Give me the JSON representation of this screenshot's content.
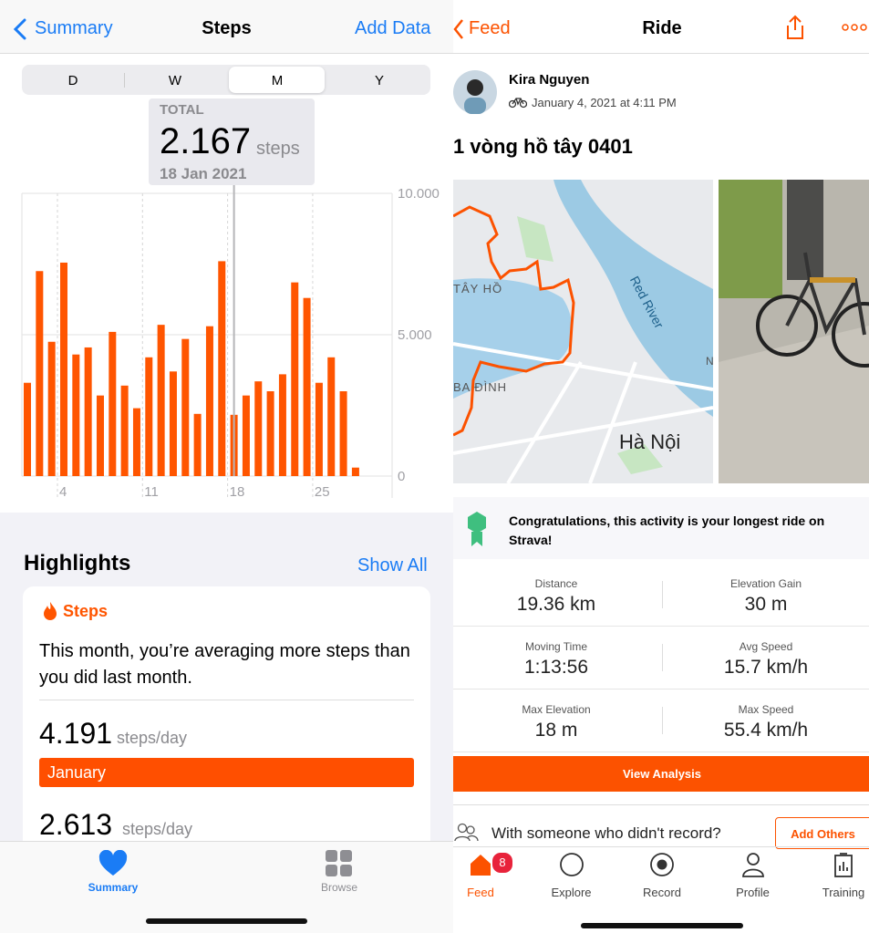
{
  "health": {
    "nav": {
      "back": "Summary",
      "title": "Steps",
      "action": "Add Data"
    },
    "segments": [
      "D",
      "W",
      "M",
      "Y"
    ],
    "tooltip": {
      "label": "TOTAL",
      "value": "2.167",
      "unit": "steps",
      "date": "18 Jan 2021"
    },
    "highlights": {
      "title": "Highlights",
      "show_all": "Show All",
      "card": {
        "category": "Steps",
        "text": "This month, you’re averaging more steps than you did last month.",
        "rows": [
          {
            "value": "4.191",
            "unit": "steps/day",
            "label": "January"
          },
          {
            "value": "2.613",
            "unit": "steps/day"
          }
        ]
      }
    },
    "tabs": [
      "Summary",
      "Browse"
    ]
  },
  "chart_data": {
    "type": "bar",
    "categories": [
      null,
      null,
      null,
      "4",
      null,
      null,
      null,
      null,
      null,
      null,
      "11",
      null,
      null,
      null,
      null,
      null,
      null,
      "18",
      null,
      null,
      null,
      null,
      null,
      null,
      "25",
      null,
      null,
      null
    ],
    "values": [
      3300,
      7250,
      4750,
      7550,
      4300,
      4550,
      2850,
      5100,
      3200,
      2400,
      4200,
      5350,
      3700,
      4850,
      2200,
      5300,
      7600,
      2167,
      2850,
      3350,
      3000,
      3600,
      6850,
      6300,
      3300,
      4200,
      3000,
      300
    ],
    "color": "#ff5500",
    "ylim": [
      0,
      10000
    ],
    "yticks": [
      {
        "value": 10000,
        "label": "10.000"
      },
      {
        "value": 5000,
        "label": "5.000"
      },
      0
    ],
    "grid": true
  },
  "strava": {
    "nav": {
      "back": "Feed",
      "title": "Ride"
    },
    "athlete": "Kira Nguyen",
    "date": "January 4, 2021 at 4:11 PM",
    "activity_title": "1 vòng hồ tây 0401",
    "map_labels": [
      "TÂY HỒ",
      "Red River",
      "BA ĐÌNH",
      "Hà Nội",
      "N"
    ],
    "achievement": "Congratulations, this activity is your longest ride on Strava!",
    "stats": [
      {
        "label": "Distance",
        "value": "19.36 km"
      },
      {
        "label": "Elevation Gain",
        "value": "30 m"
      },
      {
        "label": "Moving Time",
        "value": "1:13:56"
      },
      {
        "label": "Avg Speed",
        "value": "15.7 km/h"
      },
      {
        "label": "Max Elevation",
        "value": "18 m"
      },
      {
        "label": "Max Speed",
        "value": "55.4 km/h"
      }
    ],
    "analysis_button": "View Analysis",
    "with_others": "With someone who didn't record?",
    "add_others": "Add Others",
    "tabs": [
      "Feed",
      "Explore",
      "Record",
      "Profile",
      "Training"
    ],
    "badge": "8"
  }
}
